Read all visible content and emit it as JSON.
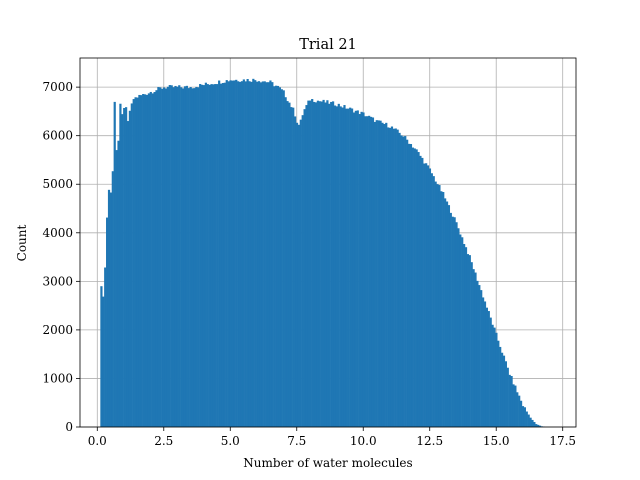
{
  "chart_data": {
    "type": "bar",
    "title": "Trial 21",
    "xlabel": "Number of water molecules",
    "ylabel": "Count",
    "xlim": [
      -0.65,
      18.0
    ],
    "ylim": [
      0,
      7600
    ],
    "xticks": [
      0.0,
      2.5,
      5.0,
      7.5,
      10.0,
      12.5,
      15.0,
      17.5
    ],
    "xtick_labels": [
      "0.0",
      "2.5",
      "5.0",
      "7.5",
      "10.0",
      "12.5",
      "15.0",
      "17.5"
    ],
    "yticks": [
      0,
      1000,
      2000,
      3000,
      4000,
      5000,
      6000,
      7000
    ],
    "ytick_labels": [
      "0",
      "1000",
      "2000",
      "3000",
      "4000",
      "5000",
      "6000",
      "7000"
    ],
    "grid": true,
    "bar_color": "#1f77b4",
    "bin_width": 0.0714,
    "points": [
      [
        0.15,
        2900
      ],
      [
        0.25,
        2600
      ],
      [
        0.35,
        4200
      ],
      [
        0.45,
        5000
      ],
      [
        0.55,
        4700
      ],
      [
        0.65,
        6700
      ],
      [
        0.75,
        5300
      ],
      [
        0.85,
        6700
      ],
      [
        0.95,
        6400
      ],
      [
        1.05,
        6700
      ],
      [
        1.15,
        6300
      ],
      [
        1.25,
        6600
      ],
      [
        1.35,
        6750
      ],
      [
        1.5,
        6800
      ],
      [
        1.75,
        6850
      ],
      [
        2.0,
        6900
      ],
      [
        2.25,
        6950
      ],
      [
        2.5,
        7000
      ],
      [
        3.0,
        7000
      ],
      [
        3.5,
        7000
      ],
      [
        4.0,
        7050
      ],
      [
        4.5,
        7100
      ],
      [
        5.0,
        7150
      ],
      [
        5.5,
        7150
      ],
      [
        6.0,
        7150
      ],
      [
        6.5,
        7100
      ],
      [
        6.8,
        7000
      ],
      [
        7.0,
        6900
      ],
      [
        7.2,
        6700
      ],
      [
        7.4,
        6500
      ],
      [
        7.5,
        6300
      ],
      [
        7.6,
        6200
      ],
      [
        7.75,
        6500
      ],
      [
        8.0,
        6750
      ],
      [
        8.5,
        6700
      ],
      [
        9.0,
        6650
      ],
      [
        9.5,
        6550
      ],
      [
        10.0,
        6450
      ],
      [
        10.5,
        6300
      ],
      [
        11.0,
        6200
      ],
      [
        11.5,
        6000
      ],
      [
        12.0,
        5700
      ],
      [
        12.5,
        5300
      ],
      [
        13.0,
        4800
      ],
      [
        13.5,
        4200
      ],
      [
        14.0,
        3500
      ],
      [
        14.5,
        2700
      ],
      [
        15.0,
        1900
      ],
      [
        15.5,
        1100
      ],
      [
        16.0,
        450
      ],
      [
        16.3,
        180
      ],
      [
        16.5,
        60
      ],
      [
        16.7,
        15
      ],
      [
        16.85,
        0
      ]
    ]
  }
}
